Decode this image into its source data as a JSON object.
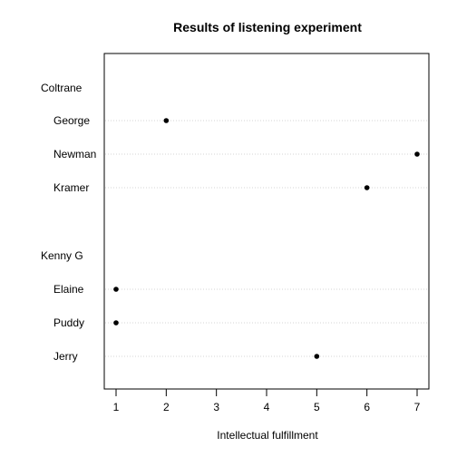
{
  "chart_data": {
    "type": "scatter",
    "title": "Results of listening experiment",
    "xlabel": "Intellectual fulfillment",
    "ylabel": "",
    "xlim": [
      0.8,
      7.25
    ],
    "xticks": [
      "1",
      "2",
      "3",
      "4",
      "5",
      "6",
      "7"
    ],
    "grid": "horizontal dotted lines at data rows",
    "groups": [
      {
        "name": "Coltrane",
        "items": [
          {
            "label": "George",
            "value": 2
          },
          {
            "label": "Newman",
            "value": 7
          },
          {
            "label": "Kramer",
            "value": 6
          }
        ]
      },
      {
        "name": "Kenny G",
        "items": [
          {
            "label": "Elaine",
            "value": 1
          },
          {
            "label": "Puddy",
            "value": 1
          },
          {
            "label": "Jerry",
            "value": 5
          }
        ]
      }
    ]
  }
}
